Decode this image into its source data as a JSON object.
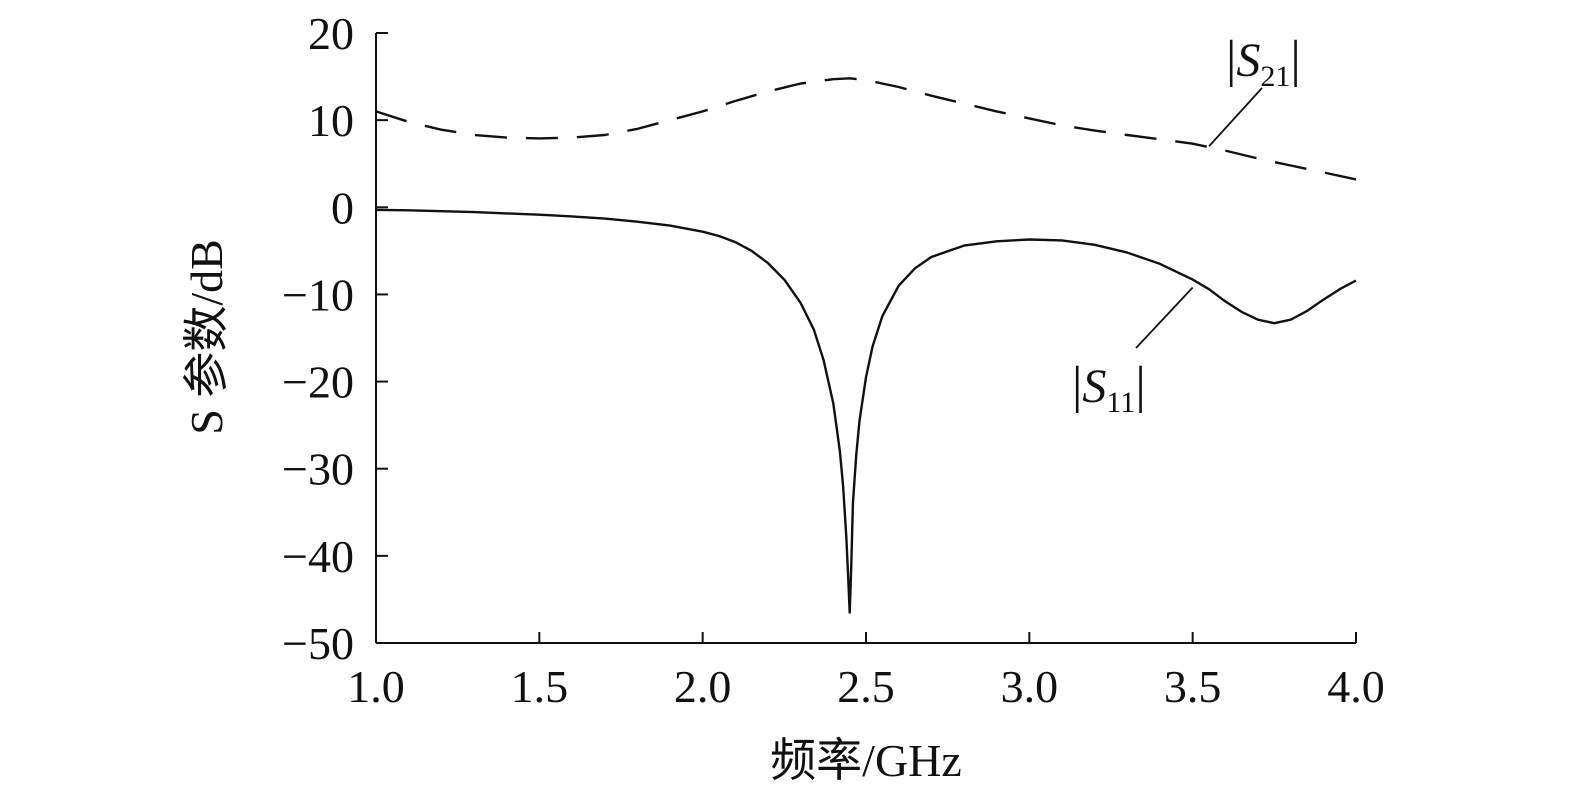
{
  "chart_data": {
    "type": "line",
    "xlabel": "频率/GHz",
    "ylabel": "S 参数/dB",
    "xlim": [
      1.0,
      4.0
    ],
    "ylim": [
      -50,
      20
    ],
    "xticks": [
      1.0,
      1.5,
      2.0,
      2.5,
      3.0,
      3.5,
      4.0
    ],
    "xtick_labels": [
      "1.0",
      "1.5",
      "2.0",
      "2.5",
      "3.0",
      "3.5",
      "4.0"
    ],
    "yticks": [
      20,
      10,
      0,
      -10,
      -20,
      -30,
      -40,
      -50
    ],
    "ytick_labels": [
      "20",
      "10",
      "0",
      "−10",
      "−20",
      "−30",
      "−40",
      "−50"
    ],
    "grid": false,
    "series": [
      {
        "name": "|S21|",
        "name_main": "S",
        "name_sub": "21",
        "style": "dashed",
        "color": "#111111",
        "x": [
          1.0,
          1.1,
          1.2,
          1.3,
          1.4,
          1.5,
          1.6,
          1.7,
          1.8,
          1.9,
          2.0,
          2.1,
          2.2,
          2.3,
          2.4,
          2.45,
          2.5,
          2.6,
          2.7,
          2.8,
          2.9,
          3.0,
          3.1,
          3.2,
          3.3,
          3.4,
          3.5,
          3.6,
          3.7,
          3.8,
          3.9,
          4.0
        ],
        "y": [
          11.0,
          9.8,
          8.9,
          8.3,
          8.0,
          7.9,
          8.0,
          8.3,
          9.0,
          10.0,
          11.0,
          12.2,
          13.3,
          14.2,
          14.7,
          14.8,
          14.6,
          13.8,
          12.8,
          11.9,
          11.0,
          10.2,
          9.4,
          8.8,
          8.3,
          7.8,
          7.3,
          6.5,
          5.6,
          4.8,
          4.0,
          3.2
        ]
      },
      {
        "name": "|S11|",
        "name_main": "S",
        "name_sub": "11",
        "style": "solid",
        "color": "#111111",
        "x": [
          1.0,
          1.1,
          1.2,
          1.3,
          1.4,
          1.5,
          1.6,
          1.7,
          1.8,
          1.9,
          2.0,
          2.05,
          2.1,
          2.15,
          2.2,
          2.25,
          2.3,
          2.34,
          2.37,
          2.4,
          2.42,
          2.43,
          2.44,
          2.445,
          2.45,
          2.455,
          2.46,
          2.47,
          2.48,
          2.5,
          2.52,
          2.55,
          2.6,
          2.65,
          2.7,
          2.8,
          2.9,
          3.0,
          3.1,
          3.2,
          3.3,
          3.4,
          3.5,
          3.55,
          3.6,
          3.65,
          3.7,
          3.75,
          3.8,
          3.85,
          3.9,
          3.95,
          4.0
        ],
        "y": [
          -0.3,
          -0.35,
          -0.45,
          -0.55,
          -0.7,
          -0.85,
          -1.05,
          -1.3,
          -1.65,
          -2.1,
          -2.8,
          -3.3,
          -4.0,
          -5.0,
          -6.4,
          -8.3,
          -11.0,
          -14.0,
          -17.5,
          -22.5,
          -28.0,
          -32.0,
          -38.0,
          -42.0,
          -46.5,
          -41.0,
          -34.0,
          -28.5,
          -24.5,
          -19.5,
          -16.0,
          -12.5,
          -9.0,
          -7.0,
          -5.7,
          -4.4,
          -3.9,
          -3.7,
          -3.8,
          -4.3,
          -5.2,
          -6.5,
          -8.3,
          -9.4,
          -10.8,
          -12.0,
          -12.9,
          -13.3,
          -12.9,
          -11.9,
          -10.6,
          -9.4,
          -8.4
        ]
      }
    ],
    "annotations": [
      {
        "series": "|S21|",
        "label_position": "top-right"
      },
      {
        "series": "|S11|",
        "label_position": "lower-right"
      }
    ]
  }
}
